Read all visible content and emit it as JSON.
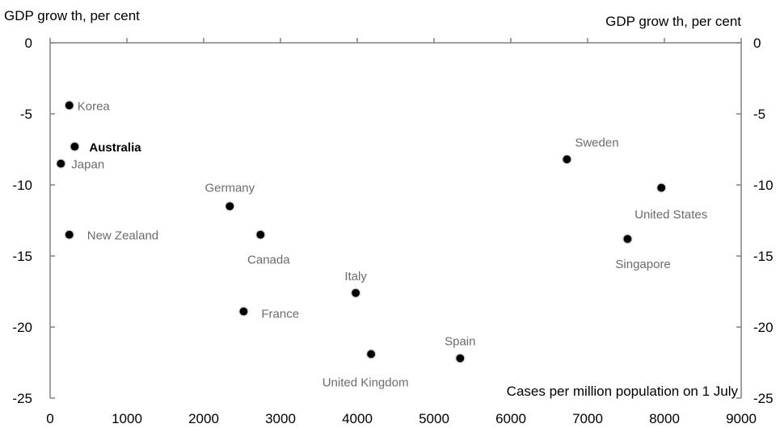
{
  "chart_data": {
    "type": "scatter",
    "title": "",
    "ylabel_left": "GDP grow th, per cent",
    "ylabel_right": "GDP grow th, per cent",
    "xlabel": "Cases per million  population on 1 July",
    "xlim": [
      0,
      9000
    ],
    "ylim": [
      -25,
      0
    ],
    "xticks": [
      "0",
      "1000",
      "2000",
      "3000",
      "4000",
      "5000",
      "6000",
      "7000",
      "8000",
      "9000"
    ],
    "yticks": [
      "0",
      "-5",
      "-10",
      "-15",
      "-20",
      "-25"
    ],
    "grid": false,
    "points": [
      {
        "label": "Korea",
        "x": 250,
        "y": -4.4,
        "bold": false
      },
      {
        "label": "Australia",
        "x": 320,
        "y": -7.3,
        "bold": true
      },
      {
        "label": "Japan",
        "x": 140,
        "y": -8.5,
        "bold": false
      },
      {
        "label": "New Zealand",
        "x": 250,
        "y": -13.5,
        "bold": false
      },
      {
        "label": "Germany",
        "x": 2340,
        "y": -11.5,
        "bold": false
      },
      {
        "label": "Canada",
        "x": 2740,
        "y": -13.5,
        "bold": false
      },
      {
        "label": "France",
        "x": 2520,
        "y": -18.9,
        "bold": false
      },
      {
        "label": "Italy",
        "x": 3980,
        "y": -17.6,
        "bold": false
      },
      {
        "label": "United Kingdom",
        "x": 4180,
        "y": -21.9,
        "bold": false
      },
      {
        "label": "Spain",
        "x": 5340,
        "y": -22.2,
        "bold": false
      },
      {
        "label": "Sweden",
        "x": 6730,
        "y": -8.2,
        "bold": false
      },
      {
        "label": "Singapore",
        "x": 7520,
        "y": -13.8,
        "bold": false
      },
      {
        "label": "United States",
        "x": 7960,
        "y": -10.2,
        "bold": false
      }
    ],
    "colors": {
      "point": "#000000",
      "label": "#6b6b6b",
      "axis": "#808080"
    }
  }
}
